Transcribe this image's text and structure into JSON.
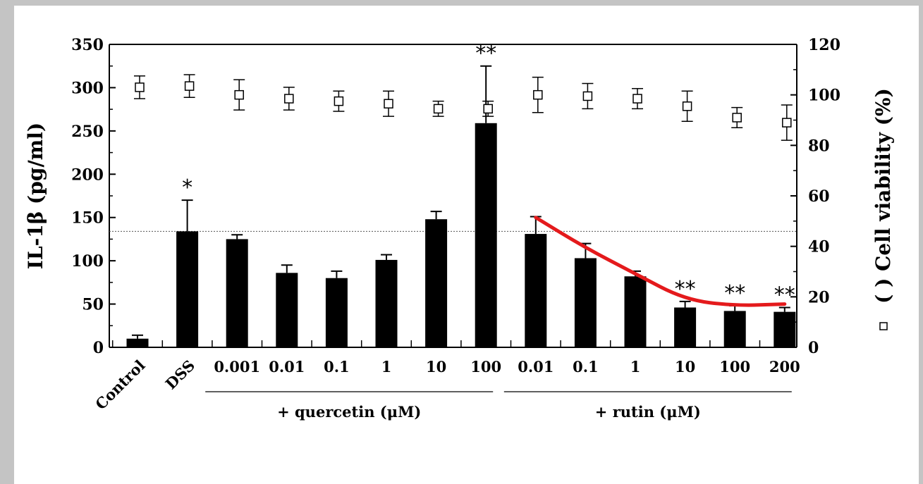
{
  "chart_data": {
    "type": "bar",
    "y_left": {
      "label": "IL-1β (pg/ml)",
      "ylim": [
        0,
        350
      ],
      "ticks": [
        "0",
        "50",
        "100",
        "150",
        "200",
        "250",
        "300",
        "350"
      ]
    },
    "y_right": {
      "label": "(  ) Cell viability (%)",
      "ylim": [
        0,
        120
      ],
      "ticks": [
        "0",
        "20",
        "40",
        "60",
        "80",
        "100",
        "120"
      ]
    },
    "categories": [
      "Control",
      "DSS",
      "0.001",
      "0.01",
      "0.1",
      "1",
      "10",
      "100",
      "0.01",
      "0.1",
      "1",
      "10",
      "100",
      "200"
    ],
    "groups": [
      {
        "label": "+ quercetin (μM)",
        "from": 2,
        "to": 7
      },
      {
        "label": "+ rutin (μM)",
        "from": 8,
        "to": 13
      }
    ],
    "series": [
      {
        "type": "bar",
        "values": [
          10,
          134,
          125,
          86,
          80,
          101,
          148,
          259,
          131,
          103,
          82,
          46,
          42,
          41
        ],
        "errors": [
          4,
          36,
          5,
          9,
          8,
          6,
          9,
          66,
          20,
          17,
          6,
          7,
          6,
          5
        ],
        "color": "#000000"
      },
      {
        "type": "scatter",
        "axis": "right",
        "marker": "open-square",
        "values": [
          103,
          103.5,
          100,
          98.5,
          97.5,
          96.5,
          94.5,
          94.5,
          100,
          99.5,
          98.5,
          95.5,
          91,
          89
        ],
        "errors": [
          4.5,
          4.5,
          6,
          4.5,
          4,
          5,
          3,
          3,
          7,
          5,
          4,
          6,
          4,
          7
        ]
      }
    ],
    "annotations": [
      {
        "text": "*",
        "category": 1
      },
      {
        "text": "**",
        "category": 7
      },
      {
        "text": "**",
        "category": 11
      },
      {
        "text": "**",
        "category": 12
      },
      {
        "text": "**",
        "category": 13
      }
    ],
    "reference_line": {
      "y": 134,
      "style": "dotted"
    },
    "overlay_curve": {
      "color": "#e41a1c",
      "from_category": 8,
      "to_category": 13,
      "points": [
        [
          8,
          150
        ],
        [
          9,
          115
        ],
        [
          10,
          85
        ],
        [
          11,
          55
        ],
        [
          12,
          48
        ],
        [
          13,
          50
        ]
      ]
    }
  }
}
